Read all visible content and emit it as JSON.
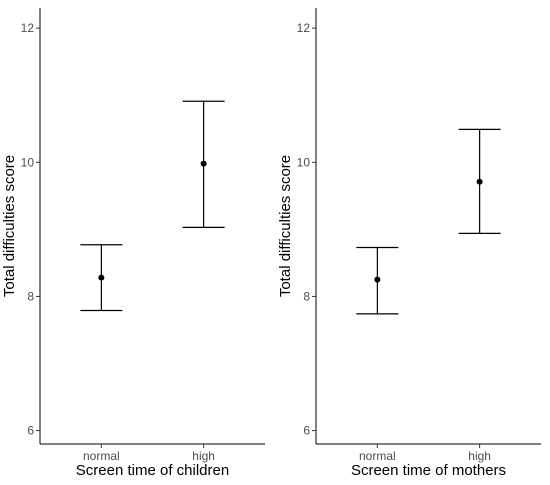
{
  "chart_data": [
    {
      "type": "scatter",
      "subtype": "point-with-error-bars",
      "title": "",
      "xlabel": "Screen time of children",
      "ylabel": "Total difficulties score",
      "categories": [
        "normal",
        "high"
      ],
      "ylim": [
        5.8,
        12.3
      ],
      "yticks": [
        6,
        8,
        10,
        12
      ],
      "grid": false,
      "legend": "none",
      "series": [
        {
          "values": [
            8.28,
            9.98
          ],
          "lower": [
            7.79,
            9.03
          ],
          "upper": [
            8.77,
            10.91
          ]
        }
      ]
    },
    {
      "type": "scatter",
      "subtype": "point-with-error-bars",
      "title": "",
      "xlabel": "Screen time of mothers",
      "ylabel": "Total difficulties score",
      "categories": [
        "normal",
        "high"
      ],
      "ylim": [
        5.8,
        12.3
      ],
      "yticks": [
        6,
        8,
        10,
        12
      ],
      "grid": false,
      "legend": "none",
      "series": [
        {
          "values": [
            8.25,
            9.71
          ],
          "lower": [
            7.74,
            8.94
          ],
          "upper": [
            8.73,
            10.49
          ]
        }
      ]
    }
  ]
}
